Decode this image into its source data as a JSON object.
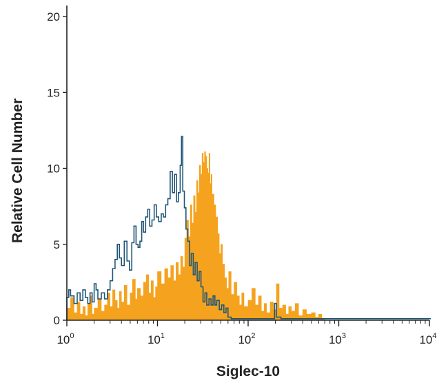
{
  "chart_data": {
    "type": "histogram",
    "xlabel": "Siglec-10",
    "ylabel": "Relative Cell Number",
    "xscale": "log",
    "xlim": [
      1,
      10000
    ],
    "ylim": [
      0,
      20
    ],
    "x_ticks": [
      {
        "base": "10",
        "exp": "0",
        "value": 1
      },
      {
        "base": "10",
        "exp": "1",
        "value": 10
      },
      {
        "base": "10",
        "exp": "2",
        "value": 100
      },
      {
        "base": "10",
        "exp": "3",
        "value": 1000
      },
      {
        "base": "10",
        "exp": "4",
        "value": 10000
      }
    ],
    "y_ticks": [
      "0",
      "5",
      "10",
      "15",
      "20"
    ],
    "grid": false,
    "series": [
      {
        "style": "filled",
        "color": "#f5a31e",
        "points": [
          [
            1.0,
            0.8
          ],
          [
            1.1,
            1.5
          ],
          [
            1.2,
            0.5
          ],
          [
            1.3,
            1.2
          ],
          [
            1.4,
            0.4
          ],
          [
            1.5,
            0.9
          ],
          [
            1.6,
            0.3
          ],
          [
            1.7,
            1.1
          ],
          [
            1.8,
            1.6
          ],
          [
            1.9,
            0.4
          ],
          [
            2.0,
            0.8
          ],
          [
            2.2,
            1.4
          ],
          [
            2.4,
            0.6
          ],
          [
            2.6,
            1.0
          ],
          [
            2.8,
            1.8
          ],
          [
            3.0,
            0.9
          ],
          [
            3.2,
            2.0
          ],
          [
            3.4,
            1.3
          ],
          [
            3.6,
            0.8
          ],
          [
            3.8,
            1.9
          ],
          [
            4.0,
            1.2
          ],
          [
            4.3,
            2.3
          ],
          [
            4.6,
            1.0
          ],
          [
            5.0,
            1.8
          ],
          [
            5.3,
            2.7
          ],
          [
            5.7,
            1.4
          ],
          [
            6.0,
            2.1
          ],
          [
            6.5,
            1.6
          ],
          [
            7.0,
            2.5
          ],
          [
            7.5,
            3.0
          ],
          [
            8.0,
            1.8
          ],
          [
            8.5,
            2.6
          ],
          [
            9.0,
            1.5
          ],
          [
            9.5,
            2.2
          ],
          [
            10.0,
            3.2
          ],
          [
            11.0,
            2.4
          ],
          [
            12.0,
            3.4
          ],
          [
            13.0,
            2.8
          ],
          [
            14.0,
            3.6
          ],
          [
            15.0,
            2.6
          ],
          [
            16.0,
            3.8
          ],
          [
            17.0,
            3.0
          ],
          [
            18.0,
            4.2
          ],
          [
            19.0,
            3.5
          ],
          [
            20.0,
            5.4
          ],
          [
            21.0,
            6.6
          ],
          [
            22.0,
            5.5
          ],
          [
            23.0,
            7.6
          ],
          [
            24.0,
            6.4
          ],
          [
            25.0,
            8.2
          ],
          [
            26.0,
            7.1
          ],
          [
            27.0,
            9.2
          ],
          [
            28.0,
            8.4
          ],
          [
            29.0,
            10.2
          ],
          [
            30.0,
            9.6
          ],
          [
            31.0,
            11.0
          ],
          [
            32.0,
            10.4
          ],
          [
            33.0,
            11.1
          ],
          [
            34.0,
            10.8
          ],
          [
            35.0,
            10.0
          ],
          [
            36.0,
            9.7
          ],
          [
            37.0,
            11.0
          ],
          [
            38.0,
            9.0
          ],
          [
            39.0,
            9.6
          ],
          [
            40.0,
            8.3
          ],
          [
            42.0,
            7.6
          ],
          [
            44.0,
            6.8
          ],
          [
            46.0,
            5.7
          ],
          [
            48.0,
            4.4
          ],
          [
            50.0,
            5.0
          ],
          [
            52.0,
            3.7
          ],
          [
            55.0,
            2.8
          ],
          [
            58.0,
            2.1
          ],
          [
            61.0,
            3.2
          ],
          [
            65.0,
            1.7
          ],
          [
            70.0,
            2.5
          ],
          [
            75.0,
            1.6
          ],
          [
            80.0,
            1.0
          ],
          [
            85.0,
            1.8
          ],
          [
            90.0,
            0.9
          ],
          [
            100.0,
            1.3
          ],
          [
            110.0,
            2.1
          ],
          [
            120.0,
            1.0
          ],
          [
            130.0,
            1.6
          ],
          [
            140.0,
            0.6
          ],
          [
            150.0,
            1.1
          ],
          [
            160.0,
            0.5
          ],
          [
            175.0,
            1.2
          ],
          [
            190.0,
            0.7
          ],
          [
            205.0,
            2.4
          ],
          [
            220.0,
            0.8
          ],
          [
            240.0,
            1.0
          ],
          [
            260.0,
            0.4
          ],
          [
            280.0,
            0.9
          ],
          [
            300.0,
            0.6
          ],
          [
            330.0,
            1.1
          ],
          [
            360.0,
            0.3
          ],
          [
            400.0,
            0.7
          ],
          [
            440.0,
            0.4
          ],
          [
            500.0,
            0.5
          ],
          [
            550.0,
            0.2
          ],
          [
            600.0,
            0.4
          ],
          [
            650.0,
            0.1
          ],
          [
            700.0,
            0.0
          ]
        ]
      },
      {
        "style": "outline",
        "color": "#1f5577",
        "points": [
          [
            1.0,
            1.5
          ],
          [
            1.05,
            2.0
          ],
          [
            1.1,
            1.6
          ],
          [
            1.2,
            1.1
          ],
          [
            1.3,
            1.8
          ],
          [
            1.4,
            1.3
          ],
          [
            1.5,
            2.0
          ],
          [
            1.6,
            1.5
          ],
          [
            1.7,
            1.1
          ],
          [
            1.8,
            1.8
          ],
          [
            1.9,
            1.2
          ],
          [
            2.0,
            2.4
          ],
          [
            2.1,
            2.0
          ],
          [
            2.2,
            1.4
          ],
          [
            2.4,
            1.8
          ],
          [
            2.6,
            1.4
          ],
          [
            2.8,
            2.0
          ],
          [
            3.0,
            2.6
          ],
          [
            3.2,
            3.4
          ],
          [
            3.4,
            4.0
          ],
          [
            3.6,
            5.0
          ],
          [
            3.8,
            4.1
          ],
          [
            4.0,
            3.6
          ],
          [
            4.3,
            5.2
          ],
          [
            4.6,
            3.9
          ],
          [
            4.9,
            3.3
          ],
          [
            5.2,
            5.1
          ],
          [
            5.5,
            6.2
          ],
          [
            5.8,
            5.0
          ],
          [
            6.1,
            4.8
          ],
          [
            6.4,
            5.2
          ],
          [
            6.7,
            6.5
          ],
          [
            7.0,
            5.8
          ],
          [
            7.4,
            6.8
          ],
          [
            7.8,
            7.3
          ],
          [
            8.2,
            6.2
          ],
          [
            8.7,
            6.6
          ],
          [
            9.2,
            7.6
          ],
          [
            9.7,
            6.8
          ],
          [
            10.3,
            6.5
          ],
          [
            11.0,
            7.0
          ],
          [
            11.6,
            6.8
          ],
          [
            12.3,
            7.6
          ],
          [
            13.0,
            8.0
          ],
          [
            13.8,
            9.8
          ],
          [
            14.6,
            8.4
          ],
          [
            15.4,
            9.6
          ],
          [
            16.2,
            7.8
          ],
          [
            17.0,
            8.4
          ],
          [
            17.8,
            10.2
          ],
          [
            18.4,
            12.1
          ],
          [
            19.0,
            8.5
          ],
          [
            19.8,
            7.4
          ],
          [
            20.6,
            6.0
          ],
          [
            21.6,
            5.2
          ],
          [
            22.6,
            3.6
          ],
          [
            23.6,
            4.4
          ],
          [
            24.8,
            3.0
          ],
          [
            26.0,
            3.8
          ],
          [
            27.4,
            2.6
          ],
          [
            28.8,
            3.2
          ],
          [
            30.2,
            2.2
          ],
          [
            31.8,
            1.2
          ],
          [
            33.4,
            1.8
          ],
          [
            35.0,
            1.0
          ],
          [
            37.0,
            1.4
          ],
          [
            39.0,
            1.0
          ],
          [
            41.0,
            1.6
          ],
          [
            43.0,
            1.0
          ],
          [
            45.0,
            1.3
          ],
          [
            48.0,
            0.7
          ],
          [
            51.0,
            1.0
          ],
          [
            54.0,
            0.5
          ],
          [
            57.0,
            0.8
          ],
          [
            60.0,
            0.2
          ],
          [
            65.0,
            0.1
          ],
          [
            75.0,
            0.1
          ],
          [
            90.0,
            0.1
          ],
          [
            110.0,
            0.1
          ],
          [
            140.0,
            0.1
          ],
          [
            180.0,
            0.1
          ],
          [
            196.0,
            1.1
          ],
          [
            205.0,
            0.2
          ],
          [
            230.0,
            0.1
          ],
          [
            300.0,
            0.1
          ],
          [
            500.0,
            0.1
          ],
          [
            1000.0,
            0.1
          ],
          [
            3000.0,
            0.1
          ],
          [
            10000.0,
            0.1
          ]
        ]
      }
    ]
  }
}
